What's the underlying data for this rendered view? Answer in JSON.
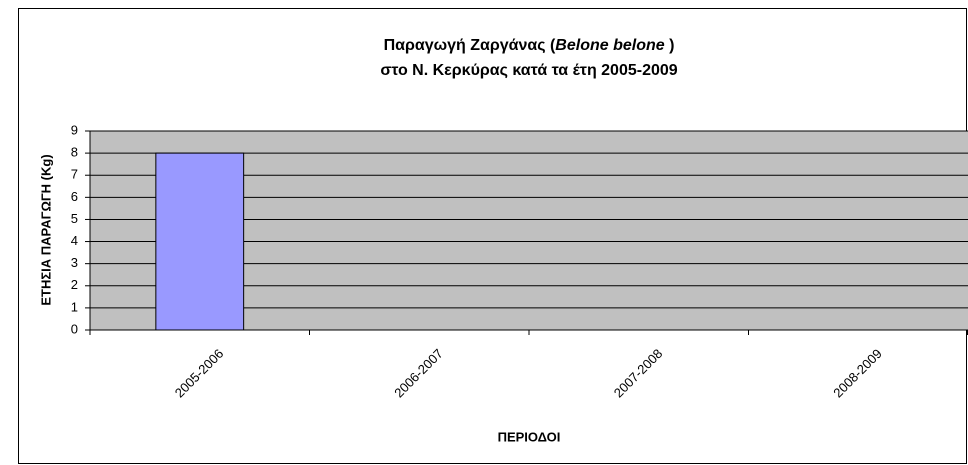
{
  "chart_data": {
    "type": "bar",
    "title": [
      [
        "Παραγωγή Ζαργάνας (",
        "Belone belone",
        " )"
      ],
      [
        "στο Ν. Κερκύρας κατά τα έτη 2005-2009"
      ]
    ],
    "x_label": "ΠΕΡΙΟΔΟΙ",
    "y_label": "ΕΤΗΣΙΑ ΠΑΡΑΓΩΓΗ (Kg)",
    "categories": [
      "2005-2006",
      "2006-2007",
      "2007-2008",
      "2008-2009"
    ],
    "values": [
      8,
      0,
      0,
      0
    ],
    "color": "#9999ff",
    "background": "#c0c0c0",
    "ylim": [
      0,
      9
    ],
    "yticks": [
      0,
      1,
      2,
      3,
      4,
      5,
      6,
      7,
      8,
      9
    ],
    "grid": true
  }
}
